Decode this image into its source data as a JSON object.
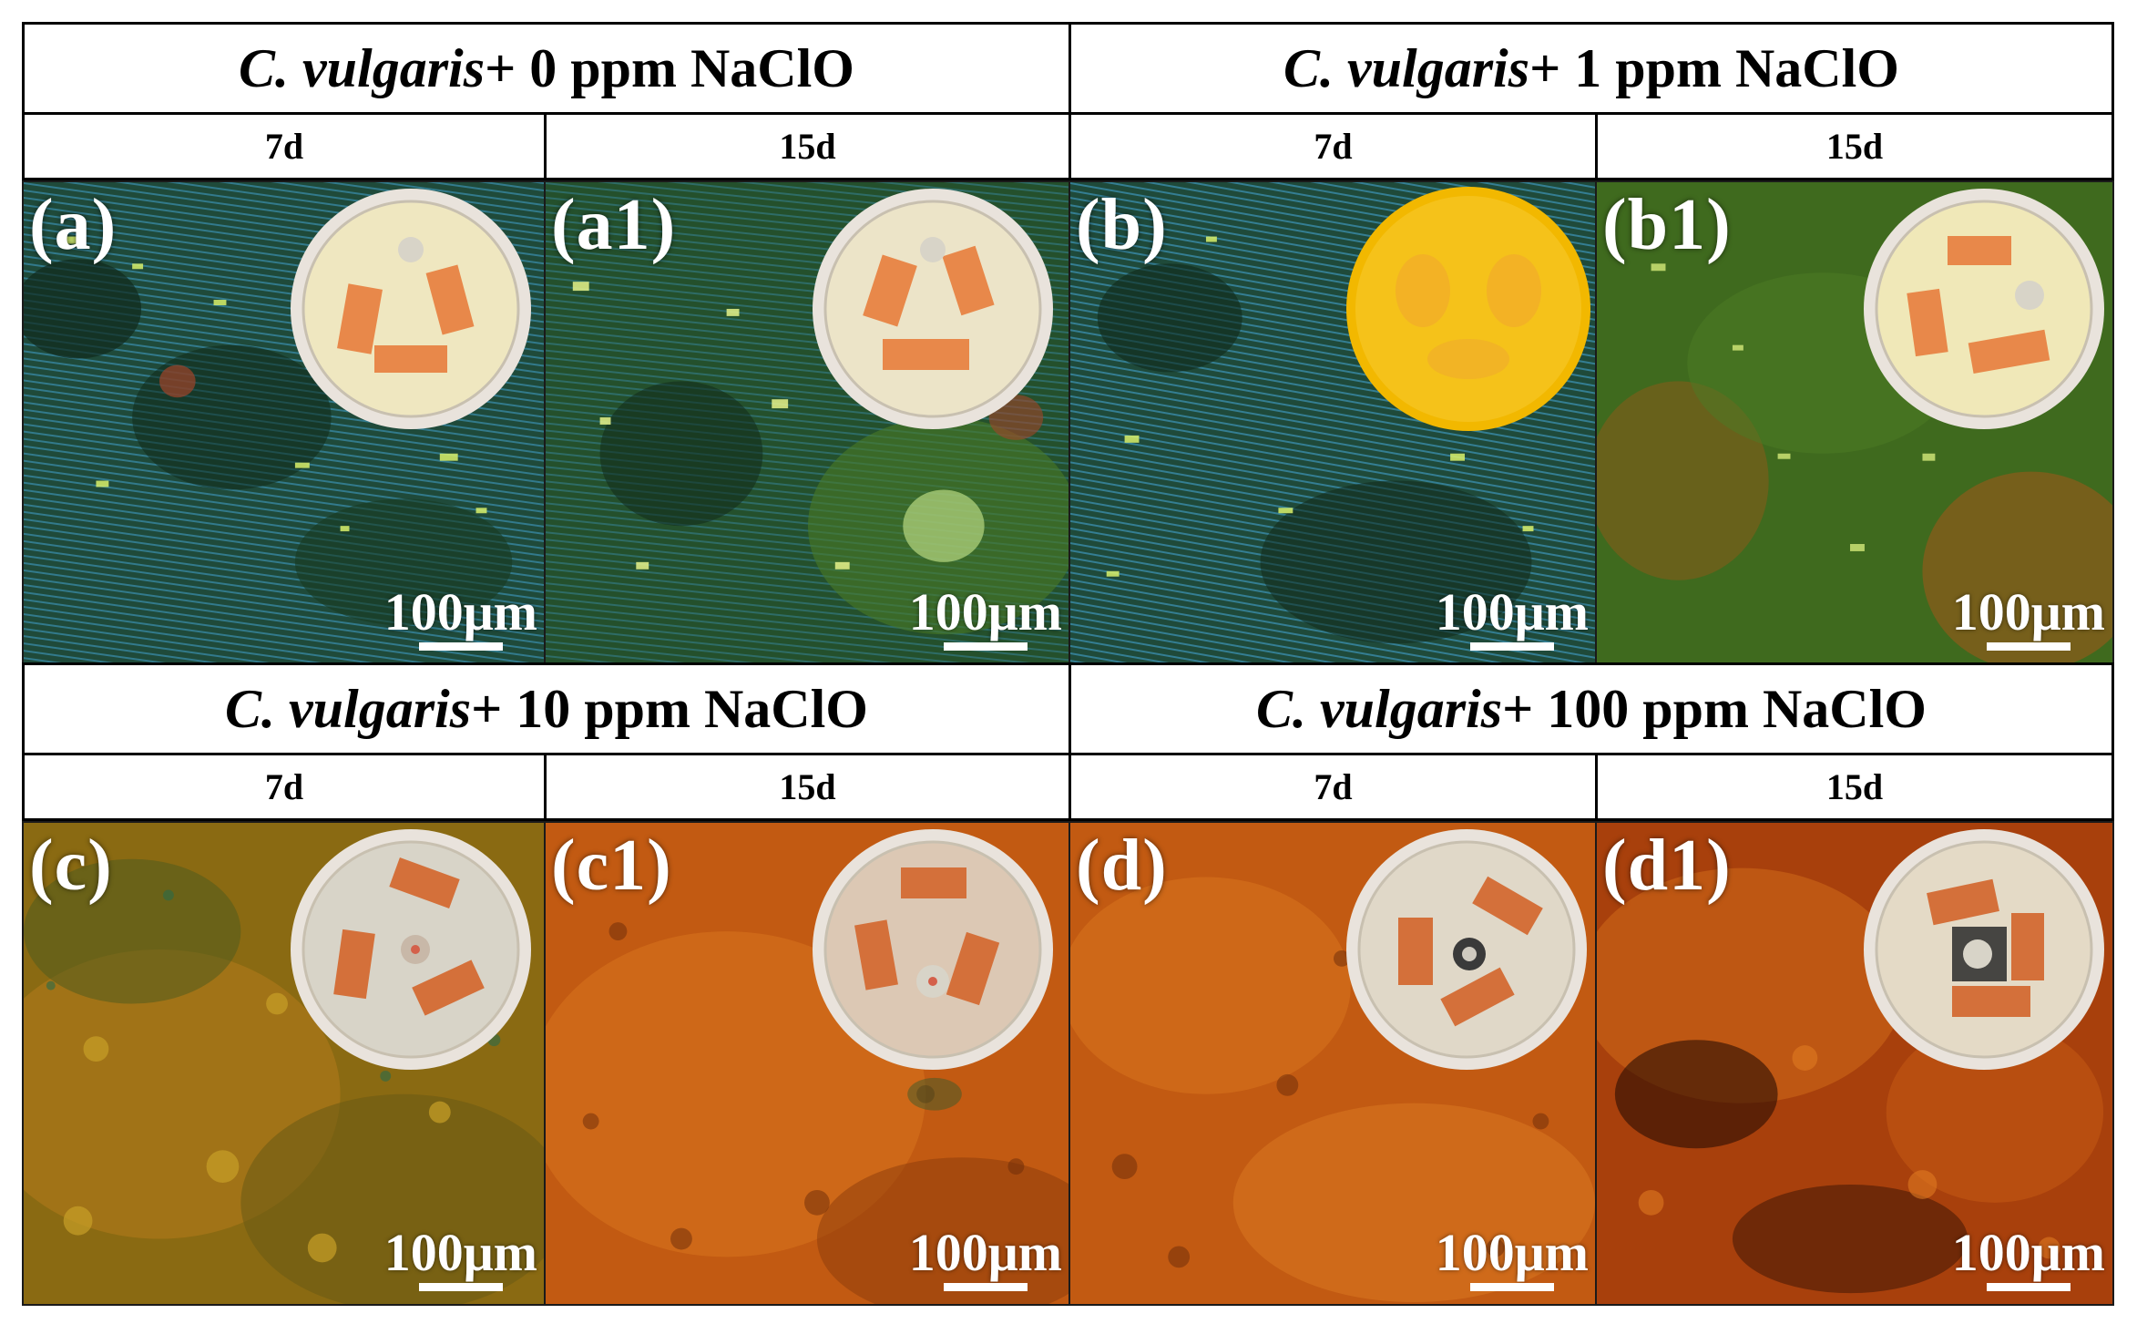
{
  "groups": [
    {
      "organism": "C. vulgaris",
      "treatment": "+ 0 ppm NaClO",
      "panels": [
        {
          "day": "7d",
          "label": "(a)",
          "scale": "100μm",
          "tone": "blue-green"
        },
        {
          "day": "15d",
          "label": "(a1)",
          "scale": "100μm",
          "tone": "blue-green"
        }
      ]
    },
    {
      "organism": "C. vulgaris",
      "treatment": " + 1 ppm NaClO",
      "panels": [
        {
          "day": "7d",
          "label": "(b)",
          "scale": "100μm",
          "tone": "blue-green"
        },
        {
          "day": "15d",
          "label": "(b1)",
          "scale": "100μm",
          "tone": "green"
        }
      ]
    },
    {
      "organism": "C. vulgaris",
      "treatment": " + 10 ppm NaClO",
      "panels": [
        {
          "day": "7d",
          "label": "(c)",
          "scale": "100μm",
          "tone": "yellow-orange"
        },
        {
          "day": "15d",
          "label": "(c1)",
          "scale": "100μm",
          "tone": "orange"
        }
      ]
    },
    {
      "organism": "C. vulgaris",
      "treatment": " + 100 ppm NaClO",
      "panels": [
        {
          "day": "7d",
          "label": "(d)",
          "scale": "100μm",
          "tone": "orange"
        },
        {
          "day": "15d",
          "label": "(d1)",
          "scale": "100μm",
          "tone": "dark-orange"
        }
      ]
    }
  ],
  "colors": {
    "blue_green_base": "#1f4a3a",
    "blue_streak": "#3a8fb0",
    "green_base": "#3f6a1e",
    "yellow_orange_base": "#8a6a12",
    "orange_base": "#c25a12",
    "dark_orange_base": "#a8400c",
    "dish_rim": "#e9e3dc",
    "dish_agar": "#efe7c0",
    "dish_yellow": "#f2b800",
    "coupon": "#e8884a"
  }
}
